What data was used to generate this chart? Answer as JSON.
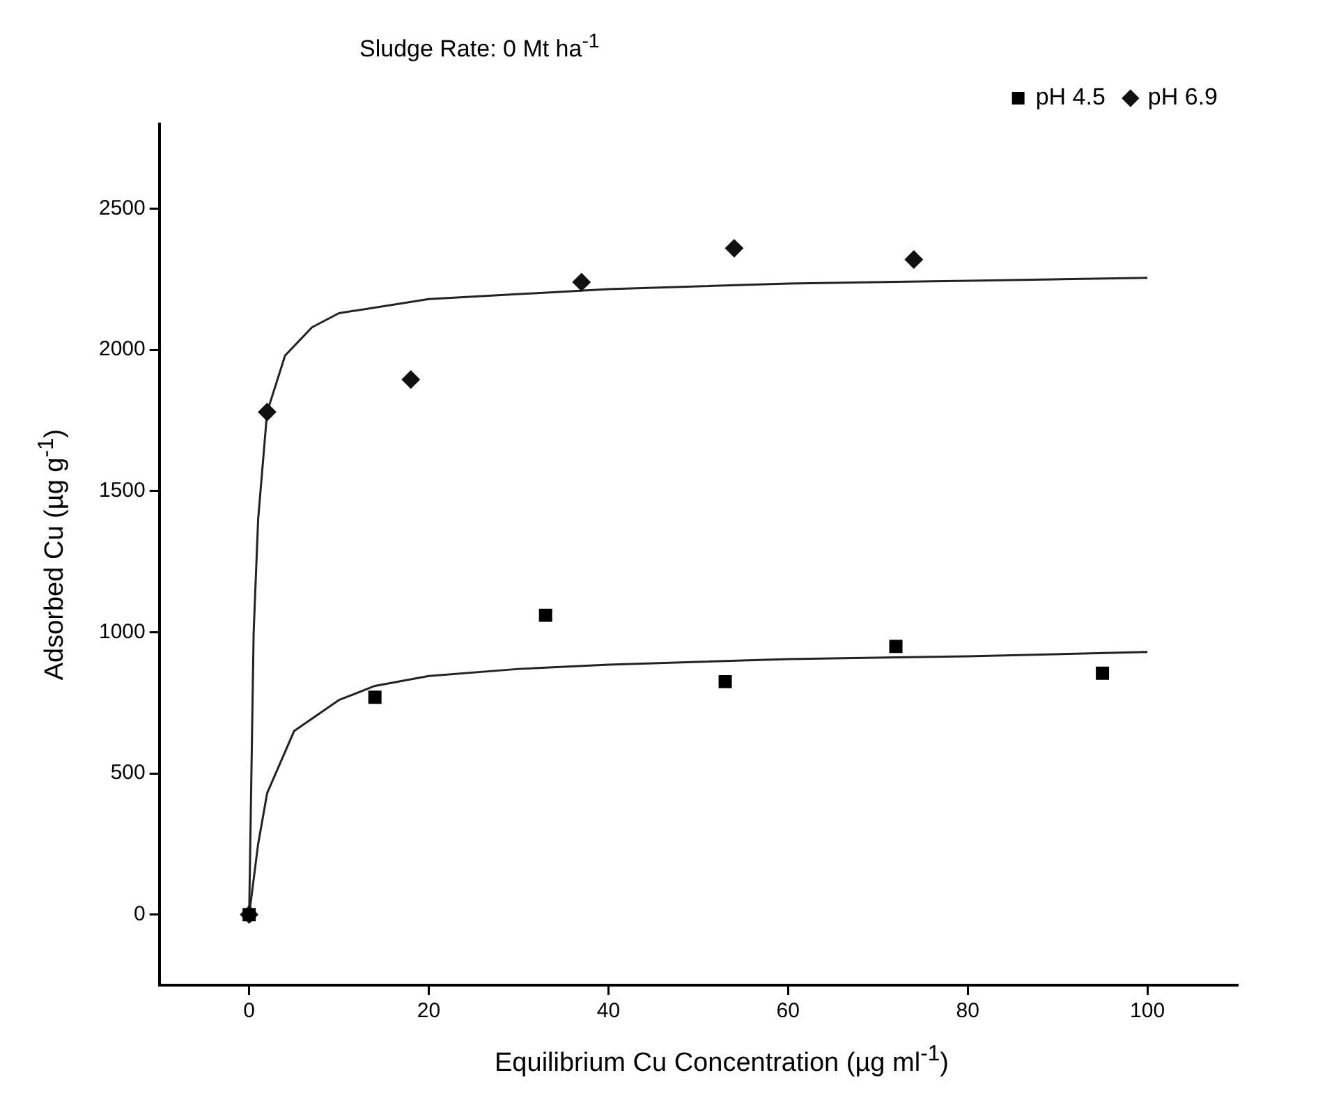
{
  "chart_data": {
    "type": "scatter",
    "title": "Sludge Rate: 0 Mt ha$^{-1}$",
    "xlabel": "Equilibrium Cu Concentration (µg ml$^{-1}$)",
    "ylabel": "Adsorbed Cu (µg g$^{-1}$)",
    "xlim": [
      -10,
      110
    ],
    "ylim": [
      -250,
      2800
    ],
    "xticks": [
      0,
      20,
      40,
      60,
      80,
      100
    ],
    "yticks": [
      0,
      500,
      1000,
      1500,
      2000,
      2500
    ],
    "grid": false,
    "legend": "top right",
    "series": [
      {
        "name": "pH 4.5",
        "type": "scatter",
        "marker": "square",
        "color": "#000000",
        "x": [
          0,
          14,
          33,
          53,
          72,
          95
        ],
        "values": [
          0,
          770,
          1060,
          825,
          950,
          855
        ]
      },
      {
        "name": "pH 6.9",
        "type": "scatter",
        "marker": "diamond",
        "color": "#111111",
        "x": [
          0,
          2,
          18,
          37,
          54,
          74
        ],
        "values": [
          0,
          1780,
          1895,
          2240,
          2360,
          2320
        ]
      },
      {
        "type": "line",
        "marker": "none",
        "line_style": "solid",
        "color": "#222222",
        "x": [
          0,
          1,
          2,
          5,
          10,
          14,
          20,
          30,
          40,
          60,
          80,
          100
        ],
        "values": [
          0,
          250,
          430,
          650,
          760,
          810,
          845,
          870,
          885,
          905,
          915,
          930
        ]
      },
      {
        "type": "line",
        "marker": "none",
        "line_style": "solid",
        "color": "#222222",
        "x": [
          0,
          0.5,
          1,
          2,
          4,
          7,
          10,
          20,
          40,
          60,
          80,
          100
        ],
        "values": [
          0,
          1000,
          1400,
          1780,
          1980,
          2080,
          2130,
          2180,
          2215,
          2235,
          2245,
          2255
        ]
      }
    ]
  }
}
